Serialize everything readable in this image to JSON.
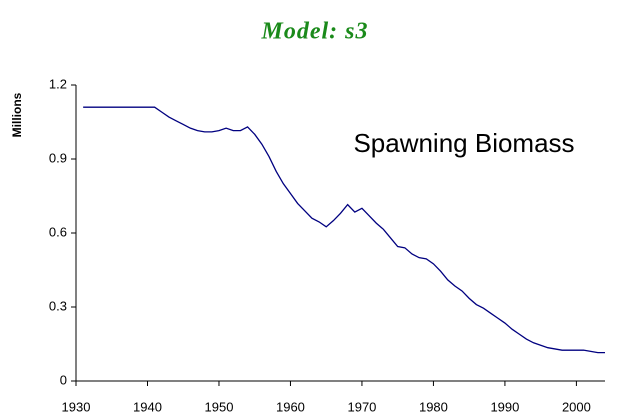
{
  "chart_data": {
    "type": "line",
    "title": "Model: s3",
    "ylabel": "Millions",
    "annotation": "Spawning Biomass",
    "x": [
      1931,
      1932,
      1933,
      1934,
      1935,
      1936,
      1937,
      1938,
      1939,
      1940,
      1941,
      1942,
      1943,
      1944,
      1945,
      1946,
      1947,
      1948,
      1949,
      1950,
      1951,
      1952,
      1953,
      1954,
      1955,
      1956,
      1957,
      1958,
      1959,
      1960,
      1961,
      1962,
      1963,
      1964,
      1965,
      1966,
      1967,
      1968,
      1969,
      1970,
      1971,
      1972,
      1973,
      1974,
      1975,
      1976,
      1977,
      1978,
      1979,
      1980,
      1981,
      1982,
      1983,
      1984,
      1985,
      1986,
      1987,
      1988,
      1989,
      1990,
      1991,
      1992,
      1993,
      1994,
      1995,
      1996,
      1997,
      1998,
      1999,
      2000,
      2001,
      2002,
      2003,
      2004
    ],
    "series": [
      {
        "name": "Spawning Biomass",
        "color": "#000080",
        "values": [
          1.11,
          1.11,
          1.11,
          1.11,
          1.11,
          1.11,
          1.11,
          1.11,
          1.11,
          1.11,
          1.11,
          1.09,
          1.07,
          1.055,
          1.04,
          1.025,
          1.015,
          1.01,
          1.01,
          1.015,
          1.025,
          1.015,
          1.015,
          1.03,
          1.0,
          0.96,
          0.91,
          0.85,
          0.8,
          0.76,
          0.72,
          0.69,
          0.66,
          0.645,
          0.625,
          0.65,
          0.68,
          0.715,
          0.685,
          0.7,
          0.67,
          0.64,
          0.615,
          0.58,
          0.545,
          0.54,
          0.515,
          0.5,
          0.495,
          0.475,
          0.445,
          0.41,
          0.385,
          0.365,
          0.335,
          0.31,
          0.295,
          0.275,
          0.255,
          0.235,
          0.21,
          0.19,
          0.17,
          0.155,
          0.145,
          0.135,
          0.13,
          0.125,
          0.125,
          0.125,
          0.125,
          0.12,
          0.115,
          0.115
        ]
      }
    ],
    "xlim": [
      1930,
      2004
    ],
    "xticks": [
      1930,
      1940,
      1950,
      1960,
      1970,
      1980,
      1990,
      2000
    ],
    "ylim": [
      0,
      1.2
    ],
    "yticks": [
      0,
      0.3,
      0.6,
      0.9,
      1.2
    ],
    "grid": false
  }
}
